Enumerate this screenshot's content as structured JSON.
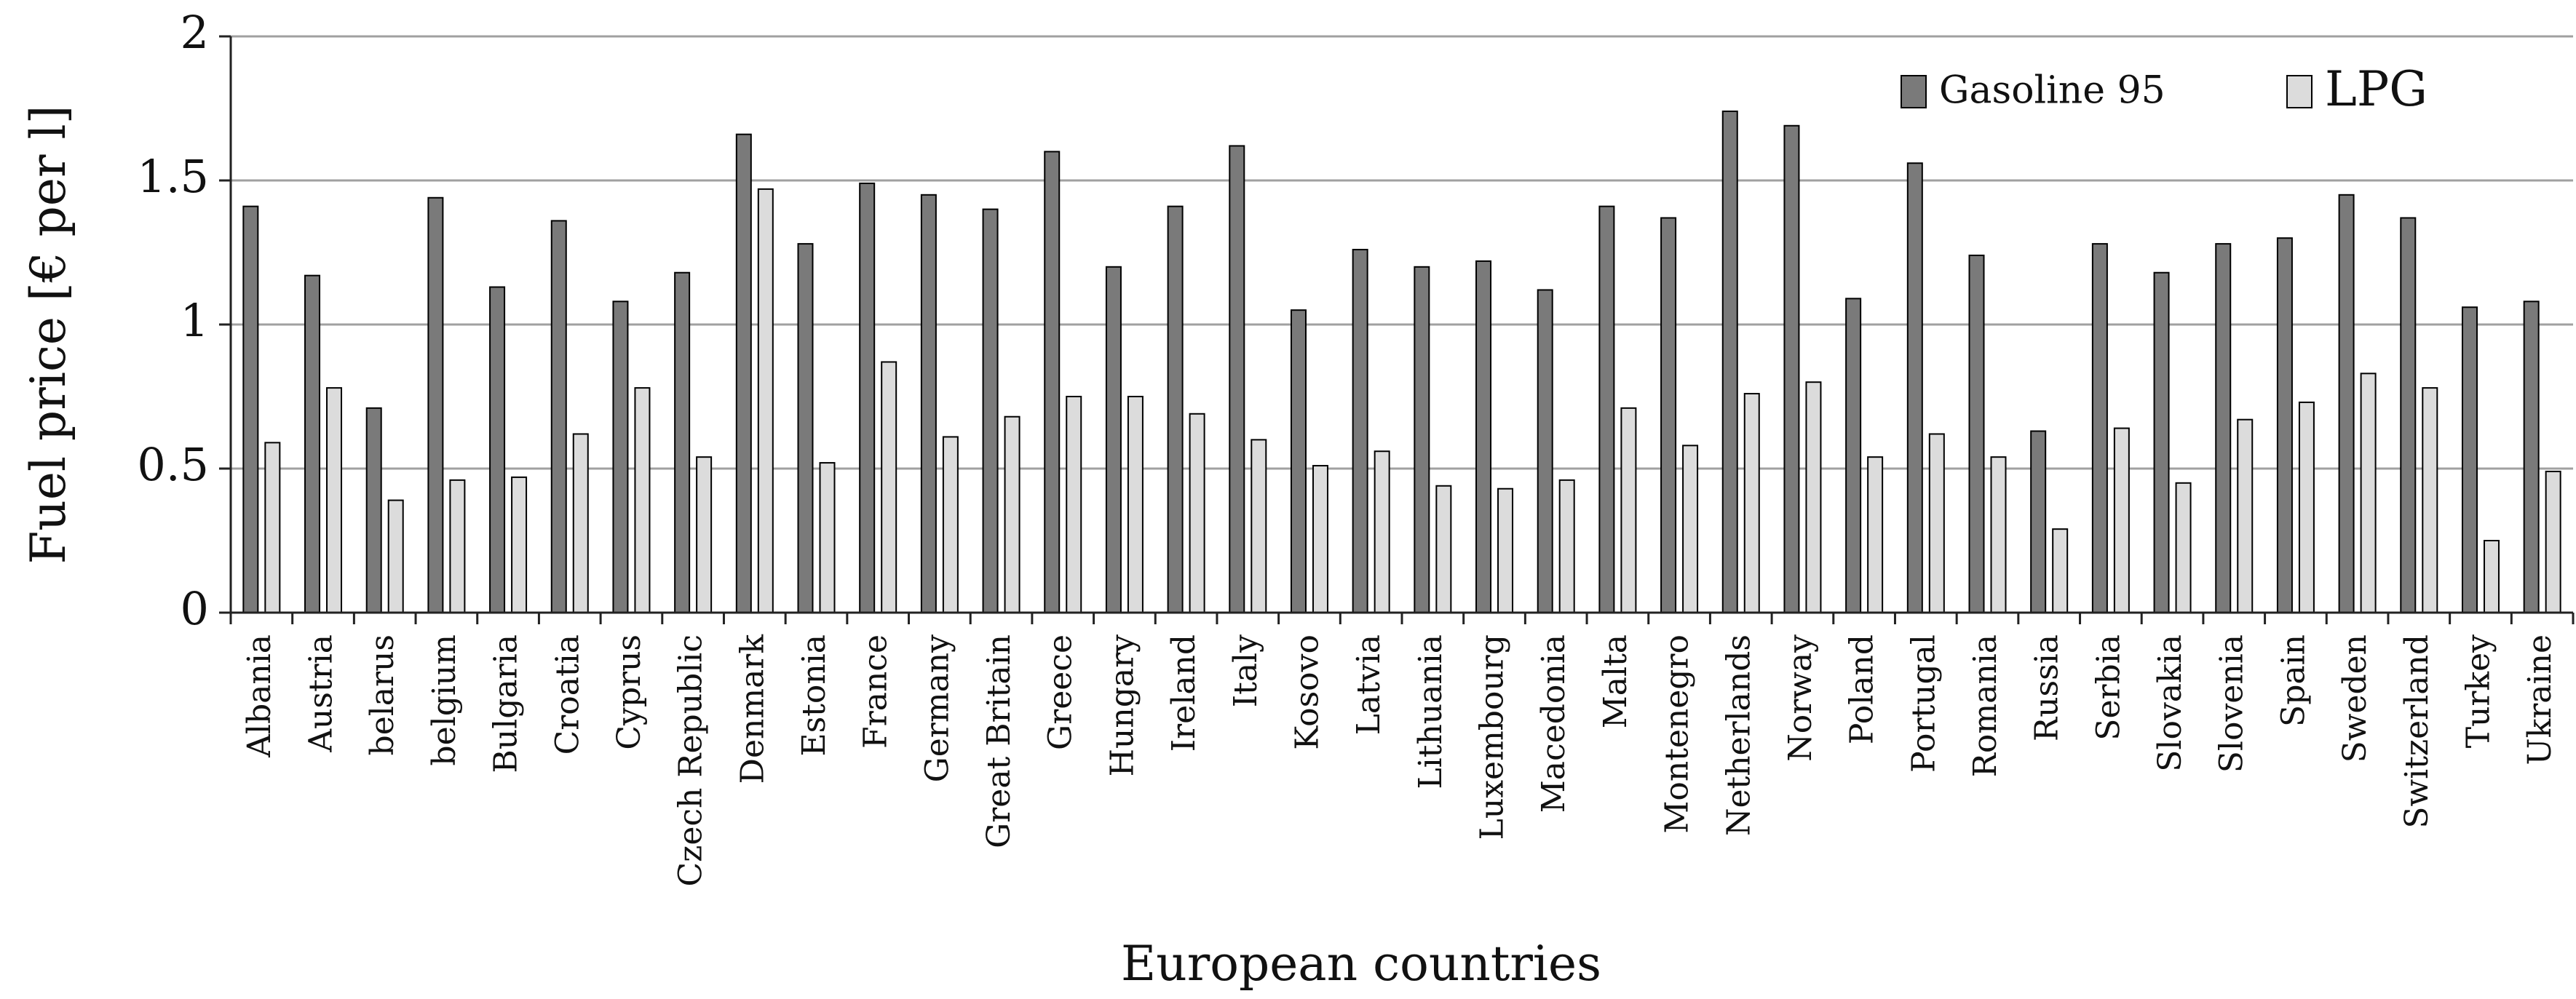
{
  "chart_data": {
    "type": "bar",
    "title": "",
    "xlabel": "European countries",
    "ylabel": "Fuel price [€ per l]",
    "ylim": [
      0,
      2
    ],
    "yticks": [
      "0",
      "0.5",
      "1",
      "1.5",
      "2"
    ],
    "grid": true,
    "legend_position": "top-right",
    "categories": [
      "Albania",
      "Austria",
      "belarus",
      "belgium",
      "Bulgaria",
      "Croatia",
      "Cyprus",
      "Czech Republic",
      "Denmark",
      "Estonia",
      "France",
      "Germany",
      "Great Britain",
      "Greece",
      "Hungary",
      "Ireland",
      "Italy",
      "Kosovo",
      "Latvia",
      "Lithuania",
      "Luxembourg",
      "Macedonia",
      "Malta",
      "Montenegro",
      "Netherlands",
      "Norway",
      "Poland",
      "Portugal",
      "Romania",
      "Russia",
      "Serbia",
      "Slovakia",
      "Slovenia",
      "Spain",
      "Sweden",
      "Switzerland",
      "Turkey",
      "Ukraine"
    ],
    "series": [
      {
        "name": "Gasoline 95",
        "color": "#7a7a7a",
        "values": [
          1.41,
          1.17,
          0.71,
          1.44,
          1.13,
          1.36,
          1.08,
          1.18,
          1.66,
          1.28,
          1.49,
          1.45,
          1.4,
          1.6,
          1.2,
          1.41,
          1.62,
          1.05,
          1.26,
          1.2,
          1.22,
          1.12,
          1.41,
          1.37,
          1.74,
          1.69,
          1.09,
          1.56,
          1.24,
          0.63,
          1.28,
          1.18,
          1.28,
          1.3,
          1.45,
          1.37,
          1.06,
          1.08
        ]
      },
      {
        "name": "LPG",
        "color": "#dcdcdc",
        "values": [
          0.59,
          0.78,
          0.39,
          0.46,
          0.47,
          0.62,
          0.78,
          0.54,
          1.47,
          0.52,
          0.87,
          0.61,
          0.68,
          0.75,
          0.75,
          0.69,
          0.6,
          0.51,
          0.56,
          0.44,
          0.43,
          0.46,
          0.71,
          0.58,
          0.76,
          0.8,
          0.54,
          0.62,
          0.54,
          0.29,
          0.64,
          0.45,
          0.67,
          0.73,
          0.83,
          0.78,
          0.25,
          0.49
        ]
      }
    ]
  }
}
